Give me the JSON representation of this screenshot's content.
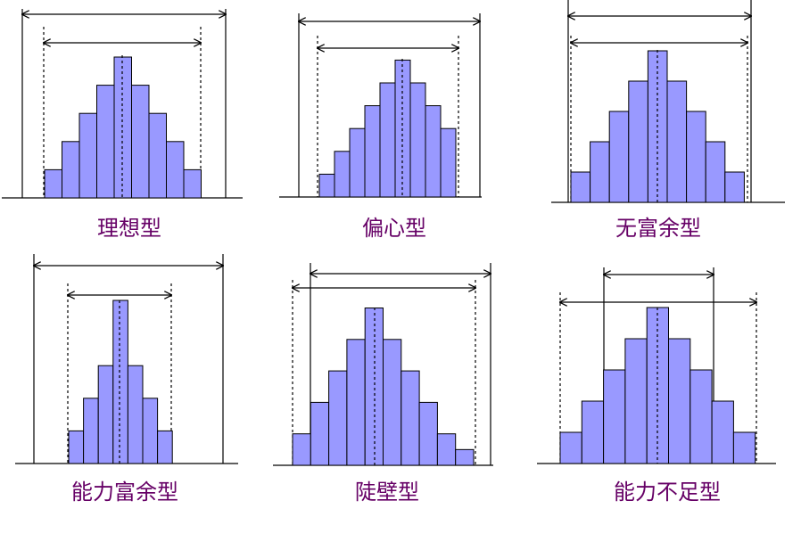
{
  "colors": {
    "bar_fill": "#9999ff",
    "bar_stroke": "#000000",
    "label": "#660066",
    "line": "#000000"
  },
  "chart_data": [
    {
      "type": "bar",
      "title": "理想型",
      "values": [
        1,
        2,
        3,
        4,
        5,
        4,
        3,
        2,
        1
      ]
    },
    {
      "type": "bar",
      "title": "偏心型",
      "values": [
        1,
        2,
        3,
        4,
        5,
        6,
        5,
        4,
        3
      ]
    },
    {
      "type": "bar",
      "title": "无富余型",
      "values": [
        1,
        2,
        3,
        4,
        5,
        4,
        3,
        2,
        1
      ]
    },
    {
      "type": "bar",
      "title": "能力富余型",
      "values": [
        1,
        2,
        3,
        5,
        3,
        2,
        1
      ]
    },
    {
      "type": "bar",
      "title": "陡壁型",
      "values": [
        1,
        2,
        3,
        4,
        5,
        4,
        3,
        2,
        1,
        0.5
      ]
    },
    {
      "type": "bar",
      "title": "能力不足型",
      "values": [
        1,
        2,
        3,
        4,
        5,
        4,
        3,
        2,
        1
      ]
    }
  ]
}
